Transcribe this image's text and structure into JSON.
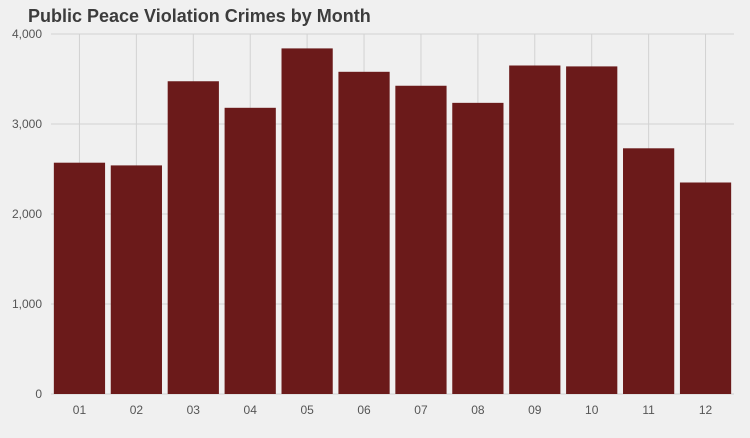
{
  "chart_data": {
    "type": "bar",
    "title": "Public Peace Violation Crimes by Month",
    "xlabel": "",
    "ylabel": "",
    "categories": [
      "01",
      "02",
      "03",
      "04",
      "05",
      "06",
      "07",
      "08",
      "09",
      "10",
      "11",
      "12"
    ],
    "values": [
      2570,
      2540,
      3475,
      3180,
      3840,
      3580,
      3425,
      3235,
      3650,
      3640,
      2730,
      2350
    ],
    "ylim": [
      0,
      4000
    ],
    "yticks": [
      0,
      1000,
      2000,
      3000,
      4000
    ],
    "ytick_labels": [
      "0",
      "1,000",
      "2,000",
      "3,000",
      "4,000"
    ],
    "grid": true,
    "colors": {
      "bar": "#6b1a1a",
      "background": "#f0f0f0",
      "grid": "#d2d2d2",
      "text": "#555555",
      "title": "#3c3c3c"
    }
  }
}
